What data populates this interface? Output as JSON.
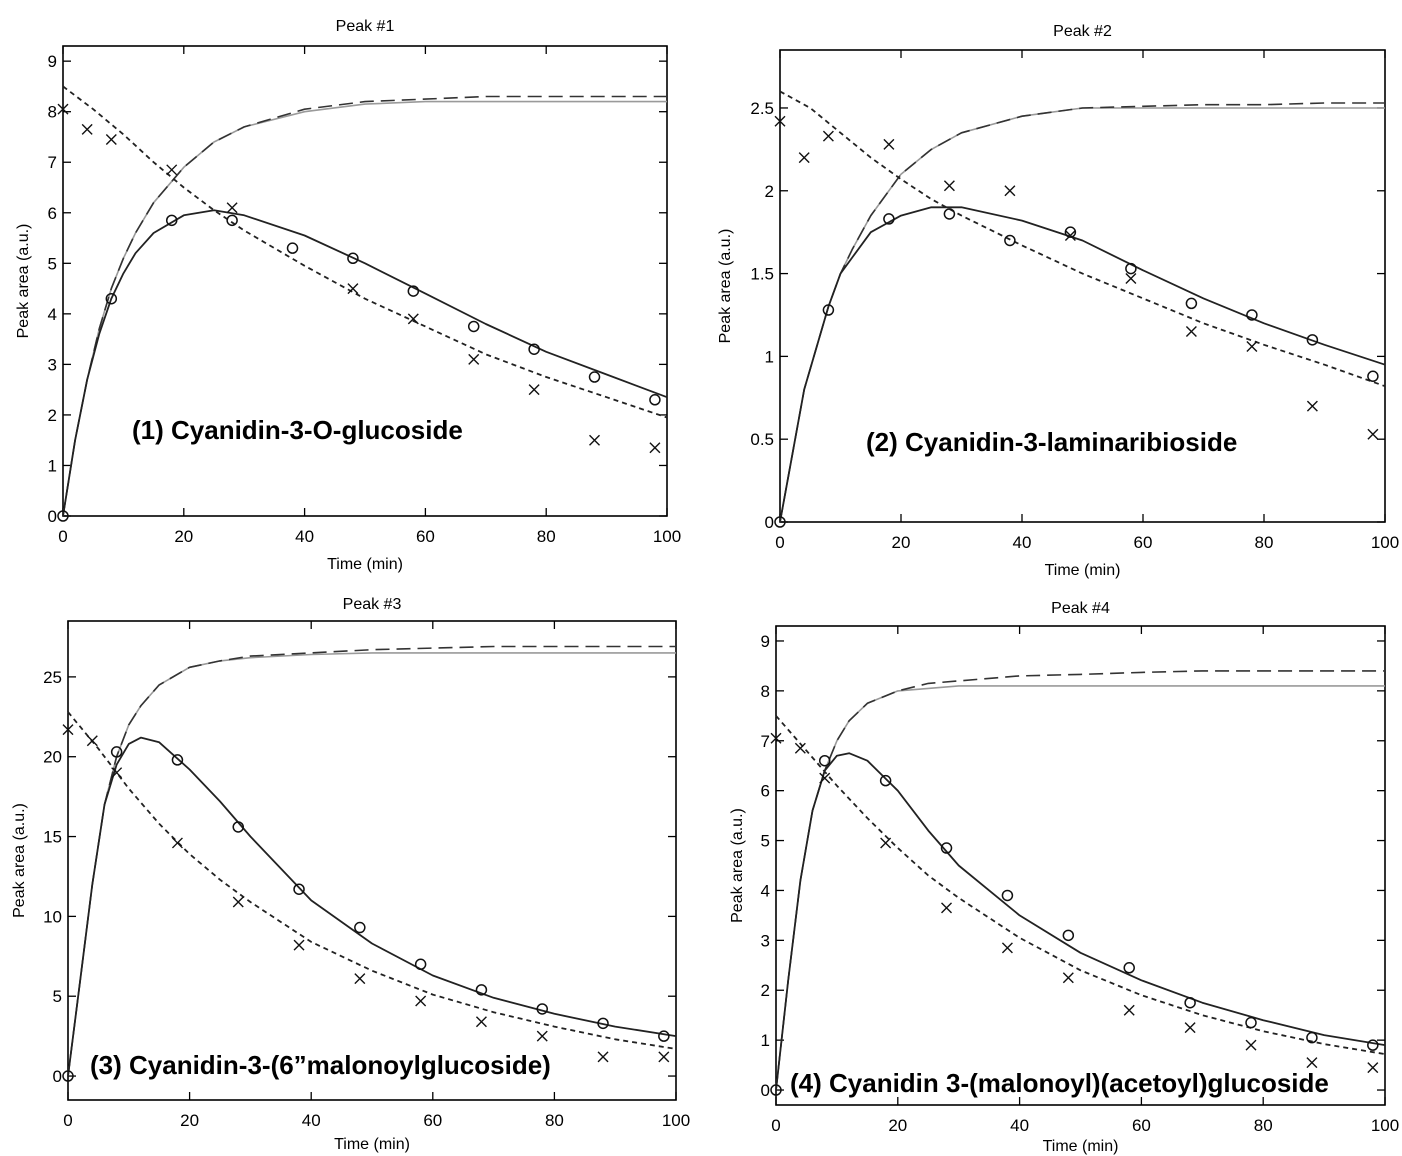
{
  "chart_data": [
    {
      "type": "line",
      "title": "Peak #1",
      "xlabel": "Time (min)",
      "ylabel": "Peak area (a.u.)",
      "annotation": "(1) Cyanidin-3-O-glucoside",
      "xlim": [
        0,
        100
      ],
      "ylim": [
        0,
        9.3
      ],
      "xticks": [
        0,
        20,
        40,
        60,
        80,
        100
      ],
      "yticks": [
        0,
        1,
        2,
        3,
        4,
        5,
        6,
        7,
        8,
        9
      ],
      "series": [
        {
          "style": "solid-gray",
          "x": [
            0,
            2,
            4,
            6,
            8,
            10,
            12,
            15,
            20,
            25,
            30,
            40,
            50,
            60,
            70,
            80,
            90,
            100
          ],
          "y": [
            0,
            1.5,
            2.7,
            3.7,
            4.5,
            5.1,
            5.6,
            6.2,
            6.9,
            7.4,
            7.7,
            8.0,
            8.15,
            8.2,
            8.2,
            8.2,
            8.2,
            8.2
          ]
        },
        {
          "style": "dashed-long",
          "x": [
            0,
            2,
            4,
            6,
            8,
            10,
            12,
            15,
            20,
            25,
            30,
            40,
            50,
            60,
            70,
            80,
            90,
            100
          ],
          "y": [
            0,
            1.5,
            2.7,
            3.7,
            4.5,
            5.1,
            5.6,
            6.2,
            6.9,
            7.4,
            7.7,
            8.05,
            8.2,
            8.25,
            8.3,
            8.3,
            8.3,
            8.3
          ]
        },
        {
          "style": "solid-dark",
          "x": [
            0,
            2,
            4,
            6,
            8,
            10,
            12,
            15,
            20,
            25,
            30,
            40,
            50,
            60,
            70,
            80,
            90,
            100
          ],
          "y": [
            0,
            1.5,
            2.7,
            3.6,
            4.3,
            4.8,
            5.2,
            5.6,
            5.95,
            6.05,
            5.95,
            5.55,
            5.0,
            4.4,
            3.8,
            3.25,
            2.8,
            2.35
          ]
        },
        {
          "style": "dashed-short",
          "x": [
            0,
            5,
            10,
            15,
            20,
            25,
            30,
            40,
            50,
            60,
            70,
            80,
            90,
            100
          ],
          "y": [
            8.5,
            8.05,
            7.55,
            7.0,
            6.5,
            6.05,
            5.65,
            4.95,
            4.3,
            3.75,
            3.2,
            2.75,
            2.35,
            1.95
          ]
        },
        {
          "style": "marker-o",
          "x": [
            0,
            8,
            18,
            28,
            38,
            48,
            58,
            68,
            78,
            88,
            98
          ],
          "y": [
            0,
            4.3,
            5.85,
            5.85,
            5.3,
            5.1,
            4.45,
            3.75,
            3.3,
            2.75,
            2.3
          ]
        },
        {
          "style": "marker-x",
          "x": [
            0,
            4,
            8,
            18,
            28,
            48,
            58,
            68,
            78,
            88,
            98
          ],
          "y": [
            8.05,
            7.65,
            7.45,
            6.85,
            6.1,
            4.5,
            3.9,
            3.1,
            2.5,
            1.5,
            1.35
          ]
        }
      ]
    },
    {
      "type": "line",
      "title": "Peak #2",
      "xlabel": "Time (min)",
      "ylabel": "Peak area (a.u.)",
      "annotation": "(2) Cyanidin-3-laminaribioside",
      "xlim": [
        0,
        100
      ],
      "ylim": [
        0,
        2.85
      ],
      "xticks": [
        0,
        20,
        40,
        60,
        80,
        100
      ],
      "yticks": [
        0,
        0.5,
        1,
        1.5,
        2,
        2.5
      ],
      "series": [
        {
          "style": "solid-gray",
          "x": [
            0,
            2,
            4,
            6,
            8,
            10,
            12,
            15,
            20,
            25,
            30,
            40,
            50,
            60,
            70,
            80,
            90,
            100
          ],
          "y": [
            0,
            0.4,
            0.8,
            1.05,
            1.3,
            1.5,
            1.65,
            1.85,
            2.1,
            2.25,
            2.35,
            2.45,
            2.5,
            2.5,
            2.5,
            2.5,
            2.5,
            2.5
          ]
        },
        {
          "style": "dashed-long",
          "x": [
            0,
            2,
            4,
            6,
            8,
            10,
            12,
            15,
            20,
            25,
            30,
            40,
            50,
            60,
            70,
            80,
            90,
            100
          ],
          "y": [
            0,
            0.4,
            0.8,
            1.05,
            1.3,
            1.5,
            1.65,
            1.85,
            2.1,
            2.25,
            2.35,
            2.45,
            2.5,
            2.51,
            2.52,
            2.52,
            2.53,
            2.53
          ]
        },
        {
          "style": "solid-dark",
          "x": [
            0,
            2,
            4,
            6,
            8,
            10,
            12,
            15,
            20,
            25,
            30,
            40,
            50,
            60,
            70,
            80,
            90,
            100
          ],
          "y": [
            0,
            0.4,
            0.8,
            1.05,
            1.3,
            1.5,
            1.6,
            1.75,
            1.85,
            1.9,
            1.9,
            1.82,
            1.7,
            1.52,
            1.35,
            1.2,
            1.07,
            0.95
          ]
        },
        {
          "style": "dashed-short",
          "x": [
            0,
            5,
            10,
            15,
            20,
            25,
            30,
            40,
            50,
            60,
            70,
            80,
            90,
            100
          ],
          "y": [
            2.6,
            2.5,
            2.35,
            2.2,
            2.07,
            1.95,
            1.85,
            1.67,
            1.5,
            1.35,
            1.2,
            1.07,
            0.95,
            0.82
          ]
        },
        {
          "style": "marker-o",
          "x": [
            0,
            8,
            18,
            28,
            38,
            48,
            58,
            68,
            78,
            88,
            98
          ],
          "y": [
            0,
            1.28,
            1.83,
            1.86,
            1.7,
            1.75,
            1.53,
            1.32,
            1.25,
            1.1,
            0.88
          ]
        },
        {
          "style": "marker-x",
          "x": [
            0,
            4,
            8,
            18,
            28,
            38,
            48,
            58,
            68,
            78,
            88,
            98
          ],
          "y": [
            2.42,
            2.2,
            2.33,
            2.28,
            2.03,
            2.0,
            1.73,
            1.47,
            1.15,
            1.06,
            0.7,
            0.53
          ]
        }
      ]
    },
    {
      "type": "line",
      "title": "Peak #3",
      "xlabel": "Time (min)",
      "ylabel": "Peak area (a.u.)",
      "annotation": "(3) Cyanidin-3-(6”malonoylglucoside)",
      "xlim": [
        0,
        100
      ],
      "ylim": [
        -1.5,
        28.5
      ],
      "xticks": [
        0,
        20,
        40,
        60,
        80,
        100
      ],
      "yticks": [
        0,
        5,
        10,
        15,
        20,
        25
      ],
      "series": [
        {
          "style": "solid-gray",
          "x": [
            0,
            2,
            4,
            6,
            8,
            10,
            12,
            15,
            20,
            25,
            30,
            40,
            50,
            60,
            70,
            80,
            90,
            100
          ],
          "y": [
            0,
            6,
            12,
            17,
            20,
            22,
            23.2,
            24.5,
            25.6,
            26,
            26.2,
            26.4,
            26.5,
            26.5,
            26.5,
            26.5,
            26.5,
            26.5
          ]
        },
        {
          "style": "dashed-long",
          "x": [
            0,
            2,
            4,
            6,
            8,
            10,
            12,
            15,
            20,
            25,
            30,
            40,
            50,
            60,
            70,
            80,
            90,
            100
          ],
          "y": [
            0,
            6,
            12,
            17,
            20,
            22,
            23.2,
            24.5,
            25.6,
            26,
            26.3,
            26.5,
            26.7,
            26.8,
            26.9,
            26.9,
            26.9,
            26.9
          ]
        },
        {
          "style": "solid-dark",
          "x": [
            0,
            2,
            4,
            6,
            8,
            10,
            12,
            15,
            20,
            25,
            30,
            40,
            50,
            60,
            70,
            80,
            90,
            100
          ],
          "y": [
            0,
            6,
            12,
            17,
            19.5,
            20.8,
            21.2,
            20.9,
            19.2,
            17.2,
            15.0,
            11.0,
            8.3,
            6.3,
            4.9,
            3.9,
            3.1,
            2.5
          ]
        },
        {
          "style": "dashed-short",
          "x": [
            0,
            5,
            10,
            15,
            20,
            25,
            30,
            40,
            50,
            60,
            70,
            80,
            90,
            100
          ],
          "y": [
            22.8,
            20.5,
            18.0,
            15.8,
            13.9,
            12.3,
            10.9,
            8.4,
            6.6,
            5.1,
            4.0,
            3.1,
            2.3,
            1.7
          ]
        },
        {
          "style": "marker-o",
          "x": [
            0,
            8,
            18,
            28,
            38,
            48,
            58,
            68,
            78,
            88,
            98
          ],
          "y": [
            0,
            20.3,
            19.8,
            15.6,
            11.7,
            9.3,
            7.0,
            5.4,
            4.2,
            3.3,
            2.5
          ]
        },
        {
          "style": "marker-x",
          "x": [
            0,
            4,
            8,
            18,
            28,
            38,
            48,
            58,
            68,
            78,
            88,
            98
          ],
          "y": [
            21.7,
            21.0,
            19.0,
            14.6,
            10.9,
            8.2,
            6.1,
            4.7,
            3.4,
            2.5,
            1.2,
            1.2
          ]
        }
      ]
    },
    {
      "type": "line",
      "title": "Peak #4",
      "xlabel": "Time (min)",
      "ylabel": "Peak area (a.u.)",
      "annotation": "(4) Cyanidin 3-(malonoyl)(acetoyl)glucoside",
      "xlim": [
        0,
        100
      ],
      "ylim": [
        -0.3,
        9.3
      ],
      "xticks": [
        0,
        20,
        40,
        60,
        80,
        100
      ],
      "yticks": [
        0,
        1,
        2,
        3,
        4,
        5,
        6,
        7,
        8,
        9
      ],
      "series": [
        {
          "style": "solid-gray",
          "x": [
            0,
            2,
            4,
            6,
            8,
            10,
            12,
            15,
            20,
            25,
            30,
            40,
            50,
            60,
            70,
            80,
            90,
            100
          ],
          "y": [
            0,
            2.2,
            4.2,
            5.6,
            6.4,
            7.0,
            7.4,
            7.75,
            8.0,
            8.05,
            8.1,
            8.1,
            8.1,
            8.1,
            8.1,
            8.1,
            8.1,
            8.1
          ]
        },
        {
          "style": "dashed-long",
          "x": [
            0,
            2,
            4,
            6,
            8,
            10,
            12,
            15,
            20,
            25,
            30,
            40,
            50,
            60,
            70,
            80,
            90,
            100
          ],
          "y": [
            0,
            2.2,
            4.2,
            5.6,
            6.4,
            7.0,
            7.4,
            7.75,
            8.0,
            8.15,
            8.2,
            8.3,
            8.33,
            8.37,
            8.4,
            8.4,
            8.4,
            8.4
          ]
        },
        {
          "style": "solid-dark",
          "x": [
            0,
            2,
            4,
            6,
            8,
            10,
            12,
            15,
            20,
            25,
            30,
            40,
            50,
            60,
            70,
            80,
            90,
            100
          ],
          "y": [
            0,
            2.2,
            4.2,
            5.6,
            6.4,
            6.7,
            6.75,
            6.6,
            6.0,
            5.2,
            4.5,
            3.5,
            2.75,
            2.2,
            1.75,
            1.4,
            1.1,
            0.9
          ]
        },
        {
          "style": "dashed-short",
          "x": [
            0,
            5,
            10,
            15,
            20,
            25,
            30,
            40,
            50,
            60,
            70,
            80,
            90,
            100
          ],
          "y": [
            7.5,
            6.8,
            6.1,
            5.45,
            4.85,
            4.3,
            3.85,
            3.05,
            2.4,
            1.9,
            1.5,
            1.18,
            0.92,
            0.72
          ]
        },
        {
          "style": "marker-o",
          "x": [
            0,
            8,
            18,
            28,
            38,
            48,
            58,
            68,
            78,
            88,
            98
          ],
          "y": [
            0,
            6.6,
            6.2,
            4.85,
            3.9,
            3.1,
            2.45,
            1.75,
            1.35,
            1.05,
            0.9
          ]
        },
        {
          "style": "marker-x",
          "x": [
            0,
            4,
            8,
            18,
            28,
            38,
            48,
            58,
            68,
            78,
            88,
            98
          ],
          "y": [
            7.05,
            6.85,
            6.25,
            4.95,
            3.65,
            2.85,
            2.25,
            1.6,
            1.25,
            0.9,
            0.55,
            0.45
          ]
        }
      ]
    }
  ]
}
